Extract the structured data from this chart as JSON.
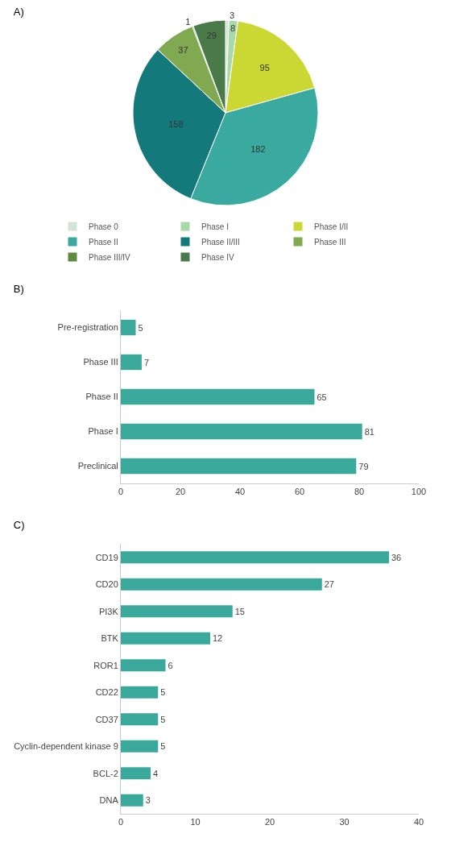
{
  "chart_data": [
    {
      "type": "pie",
      "title": "A)",
      "categories": [
        "Phase 0",
        "Phase I",
        "Phase I/II",
        "Phase II",
        "Phase II/III",
        "Phase III",
        "Phase III/IV",
        "Phase IV"
      ],
      "values": [
        3,
        8,
        95,
        182,
        158,
        37,
        1,
        29
      ],
      "colors": [
        "#d3e3dc",
        "#a9d9a9",
        "#cbd834",
        "#3aa9a0",
        "#13797b",
        "#80a952",
        "#5d8c40",
        "#4b7a4a"
      ],
      "data_labels": true,
      "legend": "bottom"
    },
    {
      "type": "bar",
      "title": "B)",
      "orientation": "horizontal",
      "categories": [
        "Pre-registration",
        "Phase III",
        "Phase II",
        "Phase I",
        "Preclinical"
      ],
      "values": [
        5,
        7,
        65,
        81,
        79
      ],
      "color": "#3aa89a",
      "xlim": [
        0,
        100
      ],
      "xticks": [
        0,
        20,
        40,
        60,
        80,
        100
      ],
      "data_labels": true,
      "grid": false,
      "legend": false
    },
    {
      "type": "bar",
      "title": "C)",
      "orientation": "horizontal",
      "categories": [
        "CD19",
        "CD20",
        "PI3K",
        "BTK",
        "ROR1",
        "CD22",
        "CD37",
        "Cyclin-dependent kinase 9",
        "BCL-2",
        "DNA"
      ],
      "values": [
        36,
        27,
        15,
        12,
        6,
        5,
        5,
        5,
        4,
        3
      ],
      "color": "#3aa89a",
      "xlim": [
        0,
        40
      ],
      "xticks": [
        0,
        10,
        20,
        30,
        40
      ],
      "data_labels": true,
      "grid": false,
      "legend": false
    }
  ]
}
